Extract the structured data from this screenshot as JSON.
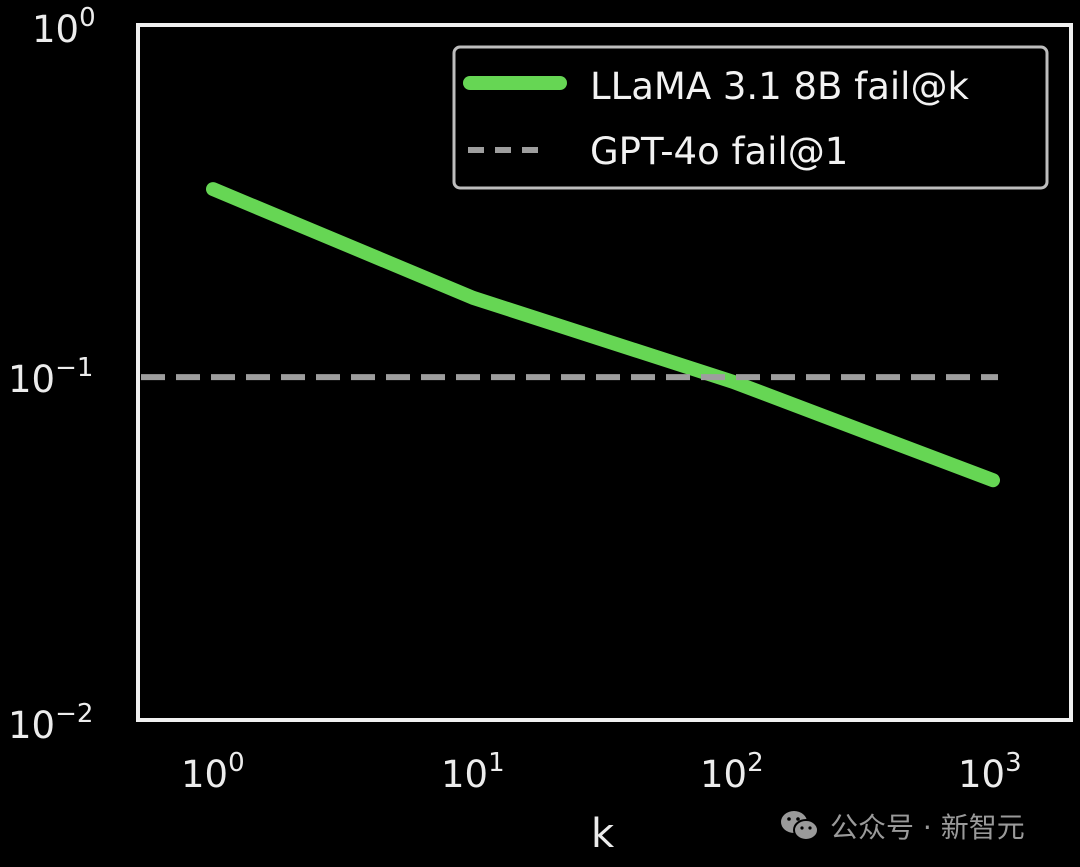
{
  "chart_data": {
    "type": "line",
    "title": "",
    "xlabel": "k",
    "ylabel": "",
    "xscale": "log",
    "yscale": "log",
    "xlim": [
      0.5,
      1800
    ],
    "ylim": [
      0.01,
      1
    ],
    "xticks": [
      "10^0",
      "10^1",
      "10^2",
      "10^3"
    ],
    "yticks": [
      "10^-2",
      "10^-1",
      "10^0"
    ],
    "grid": false,
    "legend_position": "upper right",
    "series": [
      {
        "name": "LLaMA 3.1 8B fail@k",
        "style": "solid",
        "color": "#66d654",
        "x": [
          1,
          10,
          100,
          1000
        ],
        "y": [
          0.337,
          0.164,
          0.094,
          0.049
        ]
      },
      {
        "name": "GPT-4o fail@1",
        "style": "dashed",
        "color": "#9e9e9e",
        "x": [
          0.5,
          1000
        ],
        "y": [
          0.097,
          0.097
        ]
      }
    ]
  },
  "axes": {
    "ytick_labels": [
      {
        "base": "10",
        "exp": "0"
      },
      {
        "base": "10",
        "exp": "−1"
      },
      {
        "base": "10",
        "exp": "−2"
      }
    ],
    "xtick_labels": [
      {
        "base": "10",
        "exp": "0"
      },
      {
        "base": "10",
        "exp": "1"
      },
      {
        "base": "10",
        "exp": "2"
      },
      {
        "base": "10",
        "exp": "3"
      }
    ],
    "xlabel": "k"
  },
  "legend": {
    "items": [
      {
        "label": "LLaMA 3.1 8B fail@k"
      },
      {
        "label": "GPT-4o fail@1"
      }
    ]
  },
  "watermark": {
    "icon": "wechat-icon",
    "text": "公众号 · 新智元"
  },
  "colors": {
    "background": "#000000",
    "frame": "#f0f0f0",
    "llama_line": "#66d654",
    "gpt_line": "#9e9e9e"
  }
}
